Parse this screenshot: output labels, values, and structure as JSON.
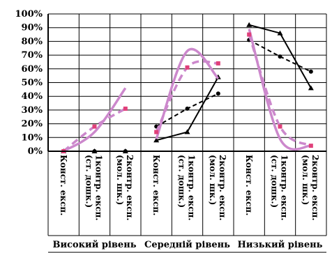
{
  "chart_data": {
    "type": "line",
    "ylim": [
      0,
      100
    ],
    "y_ticks": [
      "0%",
      "10%",
      "20%",
      "30%",
      "40%",
      "50%",
      "60%",
      "70%",
      "80%",
      "90%",
      "100%"
    ],
    "grid": true,
    "groups": [
      {
        "label": "Високий рівень",
        "categories": [
          {
            "line1": "Конст. експ."
          },
          {
            "line1": "1контр. експ.",
            "line2": "(ст. дошк.)"
          },
          {
            "line1": "2контр. експ.",
            "line2": "(мол. шк.)"
          }
        ]
      },
      {
        "label": "Середній рівень",
        "categories": [
          {
            "line1": "Конст. експ."
          },
          {
            "line1": "1контр. експ.",
            "line2": "(ст. дошк.)"
          },
          {
            "line1": "2контр. експ.",
            "line2": "(мол. шк.)"
          }
        ]
      },
      {
        "label": "Низький рівень",
        "categories": [
          {
            "line1": "Конст. експ."
          },
          {
            "line1": "1контр. експ.",
            "line2": "(ст. дошк.)"
          },
          {
            "line1": "2контр. експ.",
            "line2": "(мол. шк.)"
          }
        ]
      }
    ],
    "series": [
      {
        "style": "black-solid-triangle",
        "color": "#000000",
        "values": [
          [
            0,
            0,
            0
          ],
          [
            8,
            14,
            54
          ],
          [
            92,
            86,
            46
          ]
        ]
      },
      {
        "style": "black-dashed-circle",
        "color": "#000000",
        "values": [
          [
            0,
            0,
            0
          ],
          [
            18,
            31,
            42
          ],
          [
            81,
            69,
            58
          ]
        ]
      },
      {
        "style": "pink-solid-smooth",
        "color": "#cc88cc",
        "values": [
          [
            0,
            14,
            46
          ],
          [
            9,
            73,
            53
          ],
          [
            89,
            9,
            4
          ]
        ]
      },
      {
        "style": "pink-dashed-square",
        "color": "#cc88cc",
        "marker_color": "#e0407a",
        "values": [
          [
            0,
            18,
            31
          ],
          [
            14,
            61,
            64
          ],
          [
            85,
            18,
            4
          ]
        ]
      }
    ]
  }
}
